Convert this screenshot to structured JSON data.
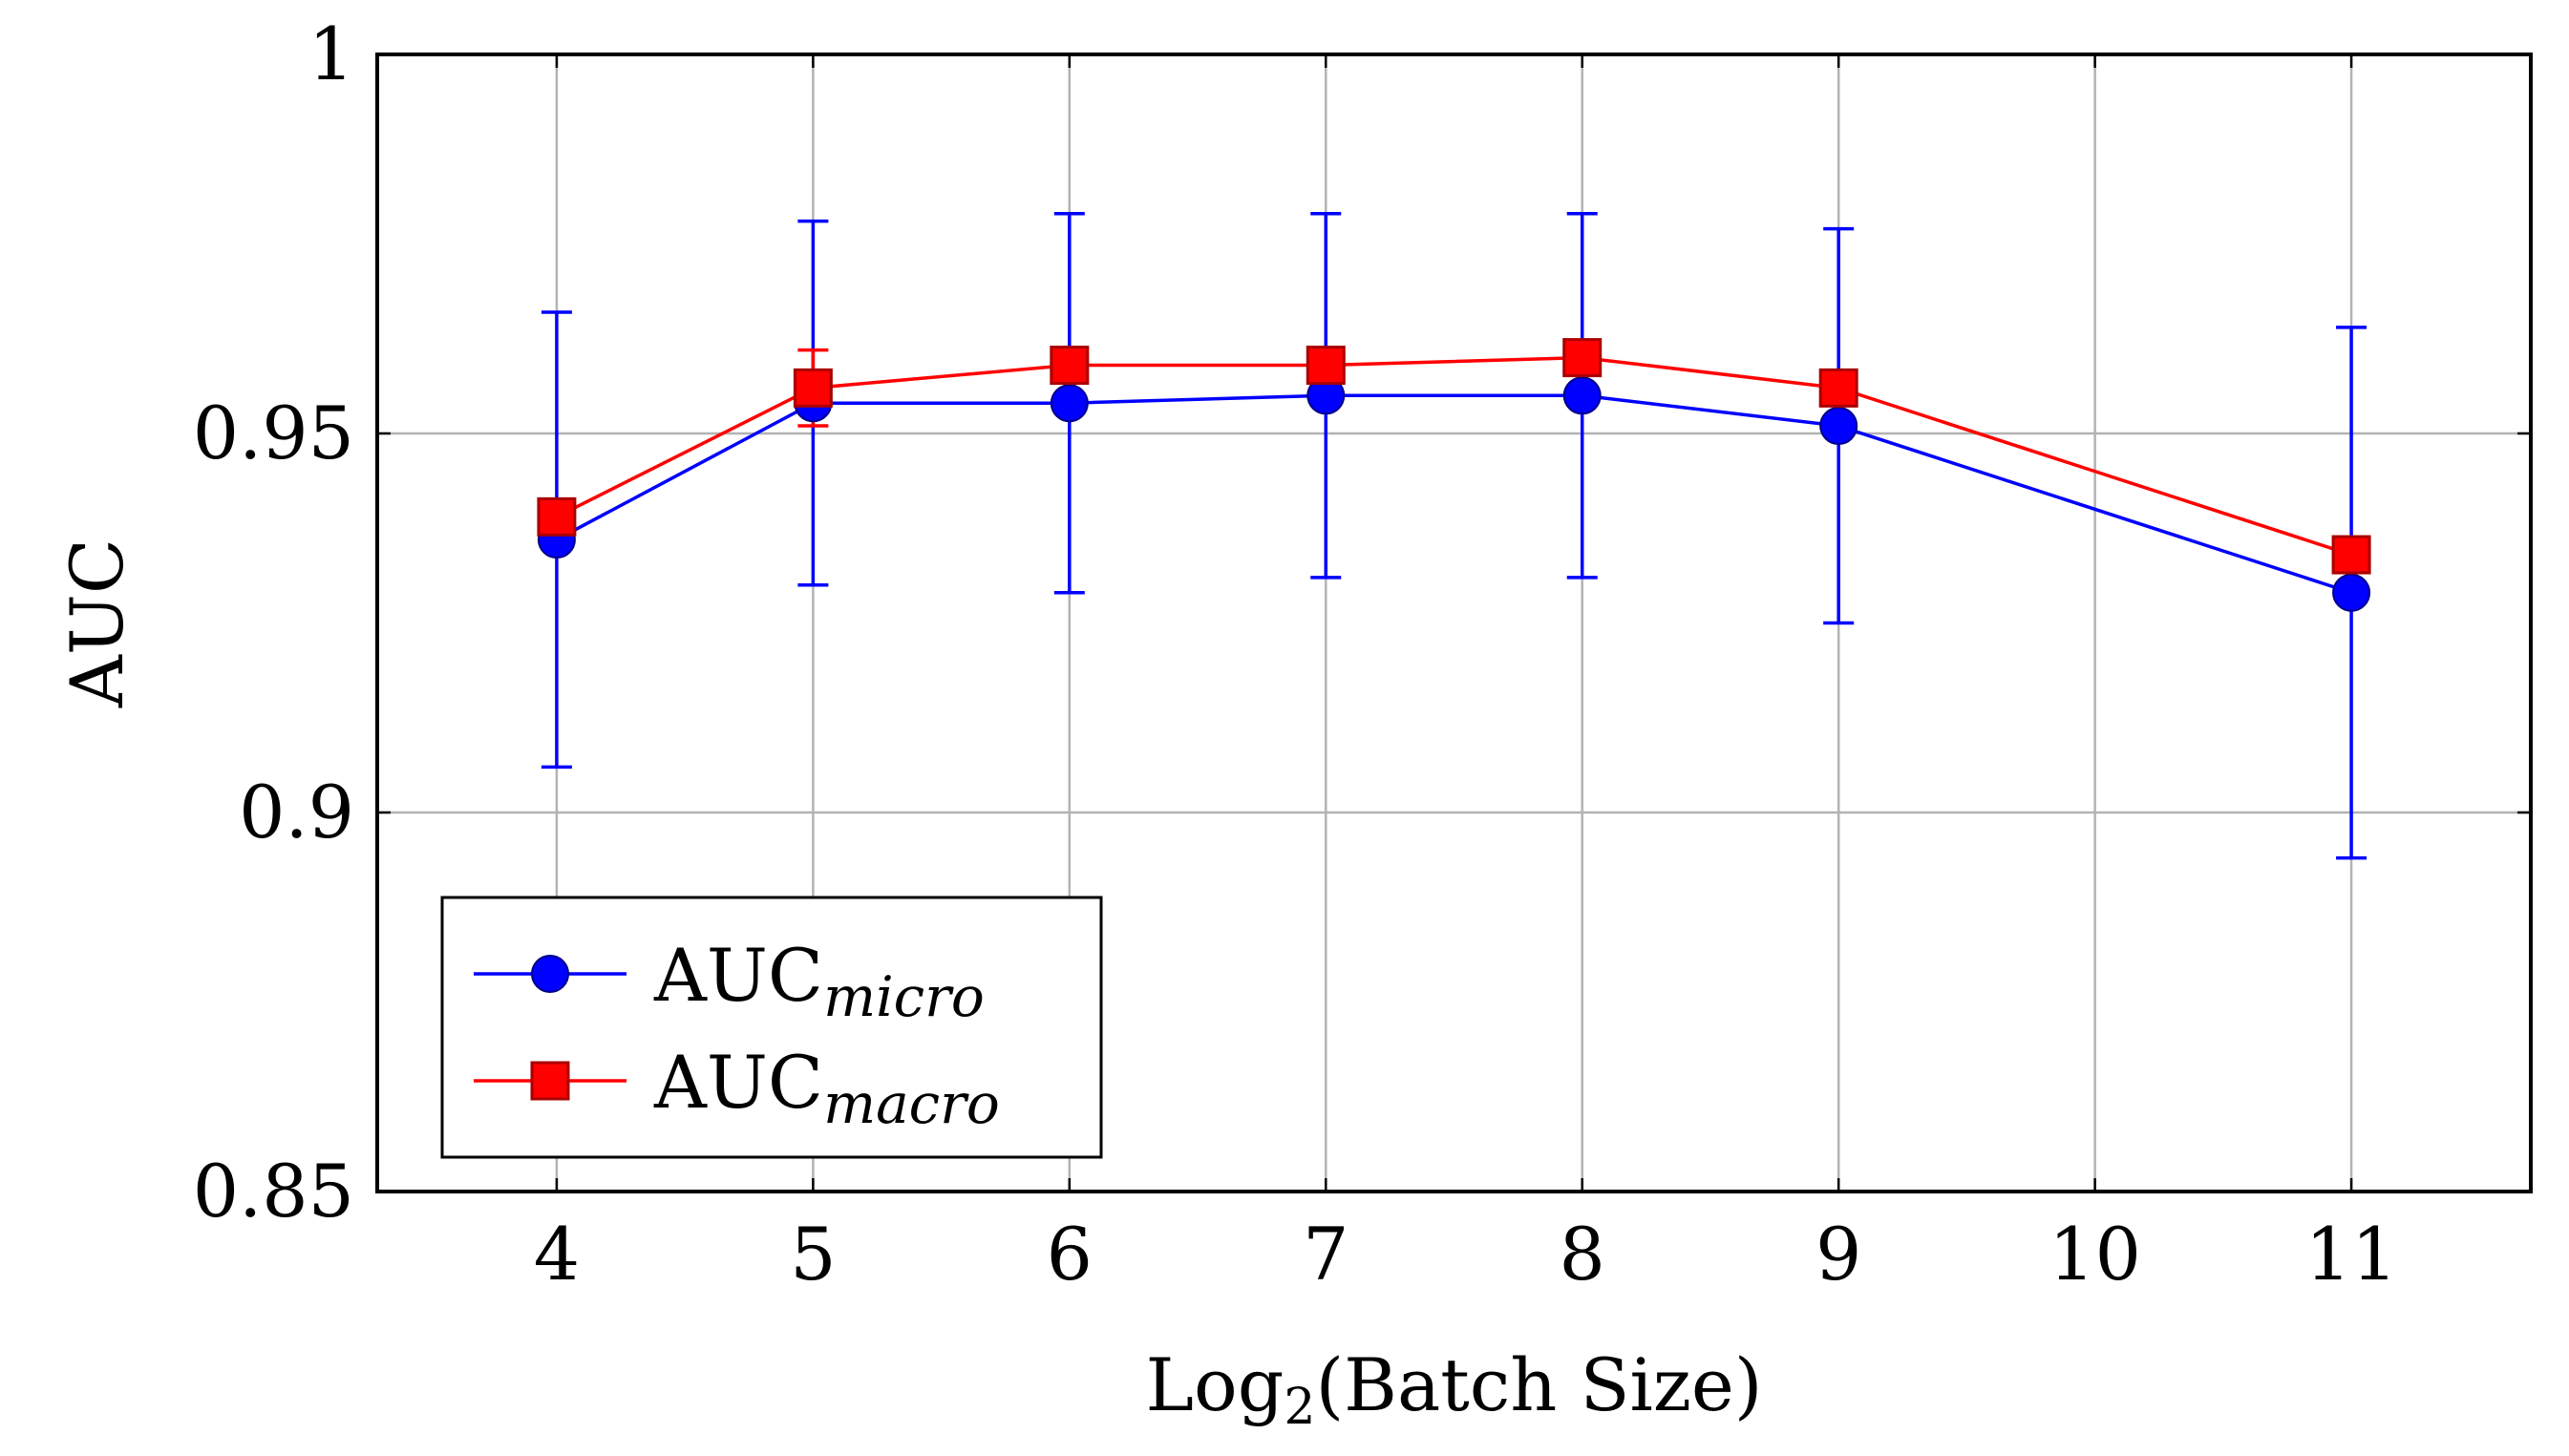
{
  "chart_data": {
    "type": "line",
    "xlabel_main": "Log",
    "xlabel_sub": "2",
    "xlabel_rest": "(Batch Size)",
    "ylabel": "AUC",
    "xlim": [
      3.3,
      11.7
    ],
    "ylim": [
      0.85,
      1.0
    ],
    "x_ticks": [
      4,
      5,
      6,
      7,
      8,
      9,
      10,
      11
    ],
    "x_tick_labels": [
      "4",
      "5",
      "6",
      "7",
      "8",
      "9",
      "10",
      "11"
    ],
    "y_ticks": [
      0.85,
      0.9,
      0.95,
      1.0
    ],
    "y_tick_labels": [
      "0.85",
      "0.9",
      "0.95",
      "1"
    ],
    "grid": true,
    "legend_position": "bottom-left",
    "x": [
      4,
      5,
      6,
      7,
      8,
      9,
      11
    ],
    "series": [
      {
        "name": "AUC",
        "name_sub": "micro",
        "color": "#0000ff",
        "marker": "circle",
        "values": [
          0.936,
          0.954,
          0.954,
          0.955,
          0.955,
          0.951,
          0.929
        ],
        "errors": [
          0.03,
          0.024,
          0.025,
          0.024,
          0.024,
          0.026,
          0.035
        ]
      },
      {
        "name": "AUC",
        "name_sub": "macro",
        "color": "#ff0000",
        "marker": "square",
        "values": [
          0.939,
          0.956,
          0.959,
          0.959,
          0.96,
          0.956,
          0.934
        ],
        "errors": [
          0.0,
          0.005,
          0.0,
          0.0,
          0.0,
          0.0,
          0.0
        ]
      }
    ]
  }
}
